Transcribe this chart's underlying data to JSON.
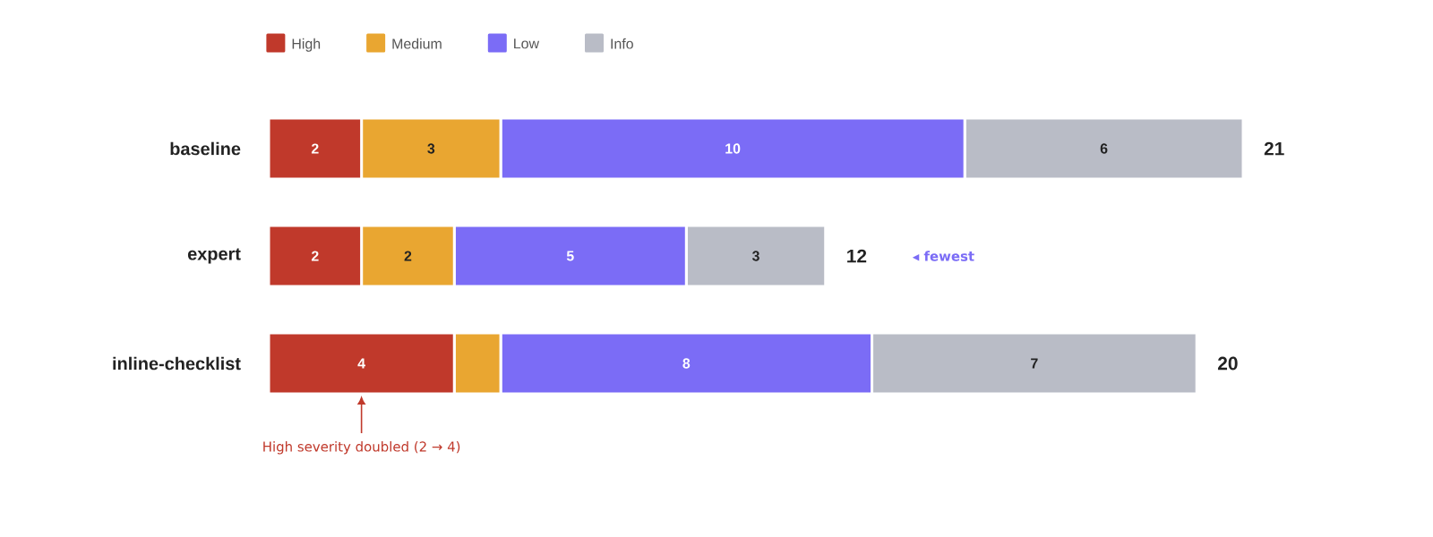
{
  "chart_data": {
    "type": "bar",
    "orientation": "horizontal",
    "stacked": true,
    "categories": [
      "baseline",
      "expert",
      "inline-checklist"
    ],
    "series": [
      {
        "name": "High",
        "color": "#c0392b",
        "values": [
          2,
          2,
          4
        ],
        "value_labels": [
          "2",
          "2",
          "4"
        ]
      },
      {
        "name": "Medium",
        "color": "#e9a631",
        "values": [
          3,
          2,
          1
        ],
        "value_labels": [
          "3",
          "2",
          null
        ]
      },
      {
        "name": "Low",
        "color": "#7b6cf6",
        "values": [
          10,
          5,
          8
        ],
        "value_labels": [
          "10",
          "5",
          "8"
        ]
      },
      {
        "name": "Info",
        "color": "#b9bcc6",
        "values": [
          6,
          3,
          7
        ],
        "value_labels": [
          "6",
          "3",
          "7"
        ]
      }
    ],
    "totals": [
      "21",
      "12",
      "20"
    ],
    "legend": "top left",
    "annotations": [
      "◂ fewest",
      "High severity doubled (2 → 4)"
    ]
  }
}
